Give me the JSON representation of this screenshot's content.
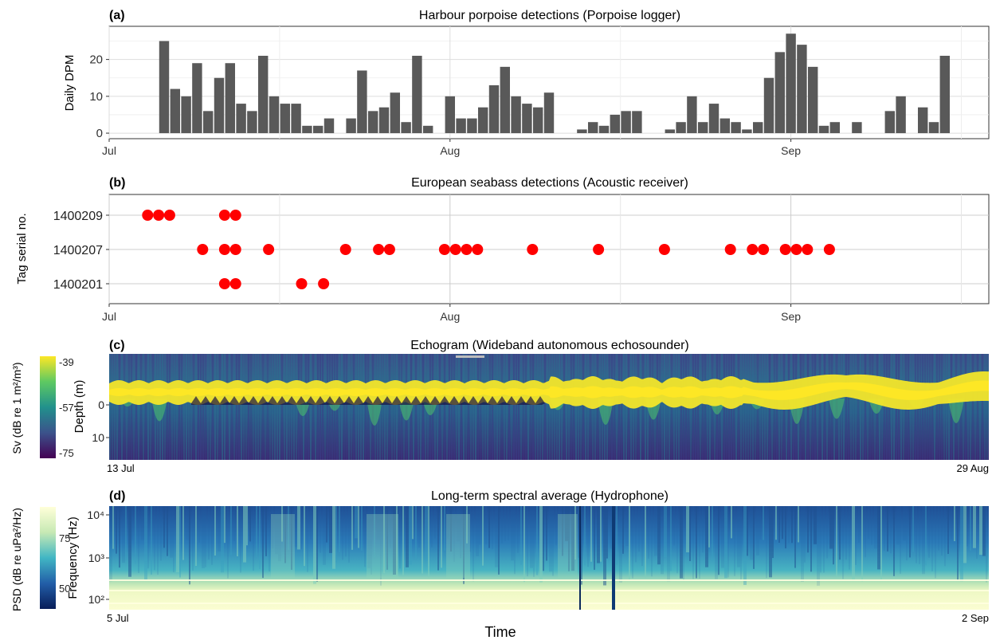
{
  "x_axis_title": "Time",
  "panels": {
    "a": {
      "label": "(a)",
      "title": "Harbour porpoise detections (Porpoise logger)"
    },
    "b": {
      "label": "(b)",
      "title": "European seabass detections (Acoustic receiver)"
    },
    "c": {
      "label": "(c)",
      "title": "Echogram (Wideband autonomous echosounder)"
    },
    "d": {
      "label": "(d)",
      "title": "Long-term spectral average (Hydrophone)"
    }
  },
  "chart_data": [
    {
      "id": "a",
      "type": "bar",
      "title": "Harbour porpoise detections (Porpoise logger)",
      "xlabel": "",
      "ylabel": "Daily DPM",
      "ylim": [
        -1.5,
        29
      ],
      "yticks": [
        0,
        10,
        20
      ],
      "xlim": [
        0,
        80
      ],
      "xticks": [
        {
          "day": 0,
          "label": "Jul"
        },
        {
          "day": 31,
          "label": "Aug"
        },
        {
          "day": 62,
          "label": "Sep"
        }
      ],
      "bar_color": "#595959",
      "x_day_offset_note_free": true,
      "bars": [
        {
          "day": 5,
          "value": 25
        },
        {
          "day": 6,
          "value": 12
        },
        {
          "day": 7,
          "value": 10
        },
        {
          "day": 8,
          "value": 19
        },
        {
          "day": 9,
          "value": 6
        },
        {
          "day": 10,
          "value": 15
        },
        {
          "day": 11,
          "value": 19
        },
        {
          "day": 12,
          "value": 8
        },
        {
          "day": 13,
          "value": 6
        },
        {
          "day": 14,
          "value": 21
        },
        {
          "day": 15,
          "value": 10
        },
        {
          "day": 16,
          "value": 8
        },
        {
          "day": 17,
          "value": 8
        },
        {
          "day": 18,
          "value": 2
        },
        {
          "day": 19,
          "value": 2
        },
        {
          "day": 20,
          "value": 4
        },
        {
          "day": 22,
          "value": 4
        },
        {
          "day": 23,
          "value": 17
        },
        {
          "day": 24,
          "value": 6
        },
        {
          "day": 25,
          "value": 7
        },
        {
          "day": 26,
          "value": 11
        },
        {
          "day": 27,
          "value": 3
        },
        {
          "day": 28,
          "value": 21
        },
        {
          "day": 29,
          "value": 2
        },
        {
          "day": 31,
          "value": 10
        },
        {
          "day": 32,
          "value": 4
        },
        {
          "day": 33,
          "value": 4
        },
        {
          "day": 34,
          "value": 7
        },
        {
          "day": 35,
          "value": 13
        },
        {
          "day": 36,
          "value": 18
        },
        {
          "day": 37,
          "value": 10
        },
        {
          "day": 38,
          "value": 8
        },
        {
          "day": 39,
          "value": 7
        },
        {
          "day": 40,
          "value": 11
        },
        {
          "day": 43,
          "value": 1
        },
        {
          "day": 44,
          "value": 3
        },
        {
          "day": 45,
          "value": 2
        },
        {
          "day": 46,
          "value": 5
        },
        {
          "day": 47,
          "value": 6
        },
        {
          "day": 48,
          "value": 6
        },
        {
          "day": 51,
          "value": 1
        },
        {
          "day": 52,
          "value": 3
        },
        {
          "day": 53,
          "value": 10
        },
        {
          "day": 54,
          "value": 3
        },
        {
          "day": 55,
          "value": 8
        },
        {
          "day": 56,
          "value": 4
        },
        {
          "day": 57,
          "value": 3
        },
        {
          "day": 58,
          "value": 1
        },
        {
          "day": 59,
          "value": 3
        },
        {
          "day": 60,
          "value": 15
        },
        {
          "day": 61,
          "value": 22
        },
        {
          "day": 62,
          "value": 27
        },
        {
          "day": 63,
          "value": 24
        },
        {
          "day": 64,
          "value": 18
        },
        {
          "day": 65,
          "value": 2
        },
        {
          "day": 66,
          "value": 3
        },
        {
          "day": 68,
          "value": 3
        },
        {
          "day": 71,
          "value": 6
        },
        {
          "day": 72,
          "value": 10
        },
        {
          "day": 74,
          "value": 7
        },
        {
          "day": 75,
          "value": 3
        },
        {
          "day": 76,
          "value": 21
        }
      ]
    },
    {
      "id": "b",
      "type": "scatter",
      "title": "European seabass detections (Acoustic receiver)",
      "xlabel": "",
      "ylabel": "Tag serial no.",
      "categories": [
        "1400209",
        "1400207",
        "1400201"
      ],
      "xlim": [
        0,
        80
      ],
      "xticks": [
        {
          "day": 0,
          "label": "Jul"
        },
        {
          "day": 31,
          "label": "Aug"
        },
        {
          "day": 62,
          "label": "Sep"
        }
      ],
      "point_color": "#ff0000",
      "points": [
        {
          "tag": "1400209",
          "days": [
            3.5,
            4.5,
            5.5,
            10.5,
            11.5
          ]
        },
        {
          "tag": "1400207",
          "days": [
            8.5,
            10.5,
            11.5,
            14.5,
            21.5,
            24.5,
            25.5,
            30.5,
            31.5,
            32.5,
            33.5,
            38.5,
            44.5,
            50.5,
            56.5,
            58.5,
            59.5,
            61.5,
            62.5,
            63.5,
            65.5
          ]
        },
        {
          "tag": "1400201",
          "days": [
            10.5,
            11.5,
            17.5,
            19.5
          ]
        }
      ]
    },
    {
      "id": "c",
      "type": "heatmap",
      "title": "Echogram (Wideband autonomous echosounder)",
      "xlabel": "",
      "ylabel": "Depth (m)",
      "yticks": [
        0,
        10
      ],
      "x_start_label": "13 Jul",
      "x_end_label": "29 Aug",
      "colorbar": {
        "label": "Sv (dB re 1 m²/m³)",
        "ticks": [
          -39,
          -57,
          -75
        ],
        "colors": [
          "#fde725",
          "#5ec962",
          "#21918c",
          "#3b528b",
          "#440154"
        ]
      }
    },
    {
      "id": "d",
      "type": "heatmap",
      "title": "Long-term spectral average (Hydrophone)",
      "xlabel": "",
      "ylabel": "Frequency (Hz)",
      "yscale": "log",
      "ytick_labels": [
        "10⁴",
        "10³",
        "10²"
      ],
      "x_start_label": "5 Jul",
      "x_end_label": "2 Sep",
      "colorbar": {
        "label": "PSD (dB re uPa²/Hz)",
        "ticks": [
          75,
          50
        ],
        "colors": [
          "#ffffd9",
          "#c7e9b4",
          "#41b6c4",
          "#225ea8",
          "#081d58"
        ]
      }
    }
  ]
}
